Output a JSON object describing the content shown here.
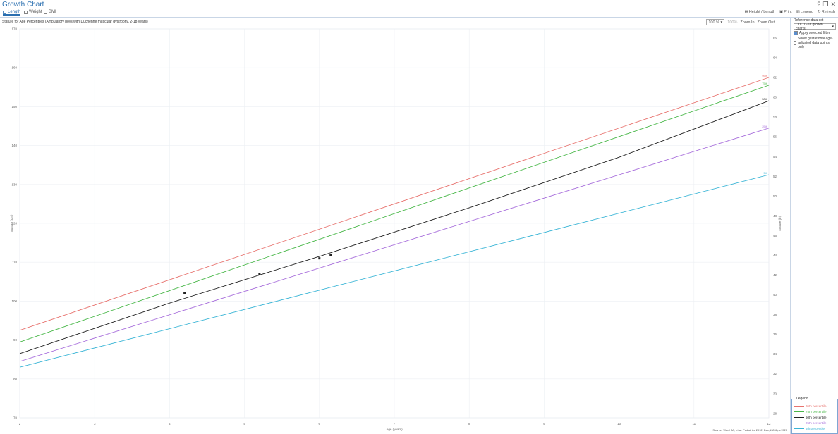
{
  "app": {
    "title": "Growth Chart",
    "window_controls": [
      "?",
      "❐",
      "✕"
    ]
  },
  "tabs": [
    {
      "label": "Length",
      "active": true,
      "icon": "length-icon"
    },
    {
      "label": "Weight",
      "active": false,
      "icon": "weight-icon"
    },
    {
      "label": "BMI",
      "active": false,
      "icon": "bmi-icon"
    }
  ],
  "toolbar": {
    "height_label": "Height / Length",
    "print_label": "Print",
    "legend_label": "Legend",
    "refresh_label": "Refresh"
  },
  "chart_controls": {
    "zoom_value": "100 %",
    "percent_label": "100%",
    "zoom_in": "Zoom In",
    "zoom_out": "Zoom Out"
  },
  "side": {
    "label": "Reference data set",
    "select_value": "CDC 0-18 growth charts",
    "checkbox1": "Apply selected filter",
    "checkbox2": "Show gestational age-adjusted data points only"
  },
  "attribution": "Source: Ward SA, et al. Pediatrics 2012; Dec;130(6): e1520",
  "legend_title": "Legend",
  "colors": {
    "p95": "#e8736f",
    "p75": "#4ab84a",
    "p50": "#222222",
    "p25": "#a86fdc",
    "p5": "#3ab5d6",
    "accent": "#2a6fb0"
  },
  "chart_data": {
    "type": "line",
    "title": "Stature for Age Percentiles (Ambulatory boys with Duchenne muscular dystrophy, 2-18 years)",
    "xlabel": "Age (years)",
    "ylabel": "Stature (cm)",
    "y2label": "Stature (in)",
    "xlim": [
      2,
      12
    ],
    "ylim": [
      70,
      170
    ],
    "x_ticks": [
      2,
      3,
      4,
      5,
      6,
      7,
      8,
      9,
      10,
      11,
      12
    ],
    "y_ticks": [
      70,
      80,
      90,
      100,
      110,
      120,
      130,
      140,
      150,
      160,
      170
    ],
    "y2_ticks": [
      28,
      30,
      32,
      34,
      36,
      38,
      40,
      42,
      44,
      46,
      48,
      50,
      52,
      54,
      56,
      58,
      60,
      62,
      64,
      66
    ],
    "legend_position": "bottom-right",
    "series": [
      {
        "name": "95th percentile",
        "end_label": "95th",
        "color_key": "p95",
        "x": [
          2,
          12
        ],
        "y": [
          92.5,
          157.5
        ]
      },
      {
        "name": "75th percentile",
        "end_label": "75th",
        "color_key": "p75",
        "x": [
          2,
          12
        ],
        "y": [
          89.5,
          155.5
        ]
      },
      {
        "name": "50th percentile",
        "end_label": "50th",
        "color_key": "p50",
        "x": [
          2,
          4,
          6,
          8,
          10,
          12
        ],
        "y": [
          86.5,
          99.5,
          111.5,
          124,
          137,
          151.5
        ]
      },
      {
        "name": "25th percentile",
        "end_label": "25th",
        "color_key": "p25",
        "x": [
          2,
          12
        ],
        "y": [
          84.5,
          144.5
        ]
      },
      {
        "name": "5th percentile",
        "end_label": "5th",
        "color_key": "p5",
        "x": [
          2,
          12
        ],
        "y": [
          83,
          132.5
        ]
      }
    ],
    "points": {
      "x": [
        4.2,
        5.2,
        6.0,
        6.15
      ],
      "y": [
        102,
        107,
        111,
        111.8
      ]
    }
  }
}
